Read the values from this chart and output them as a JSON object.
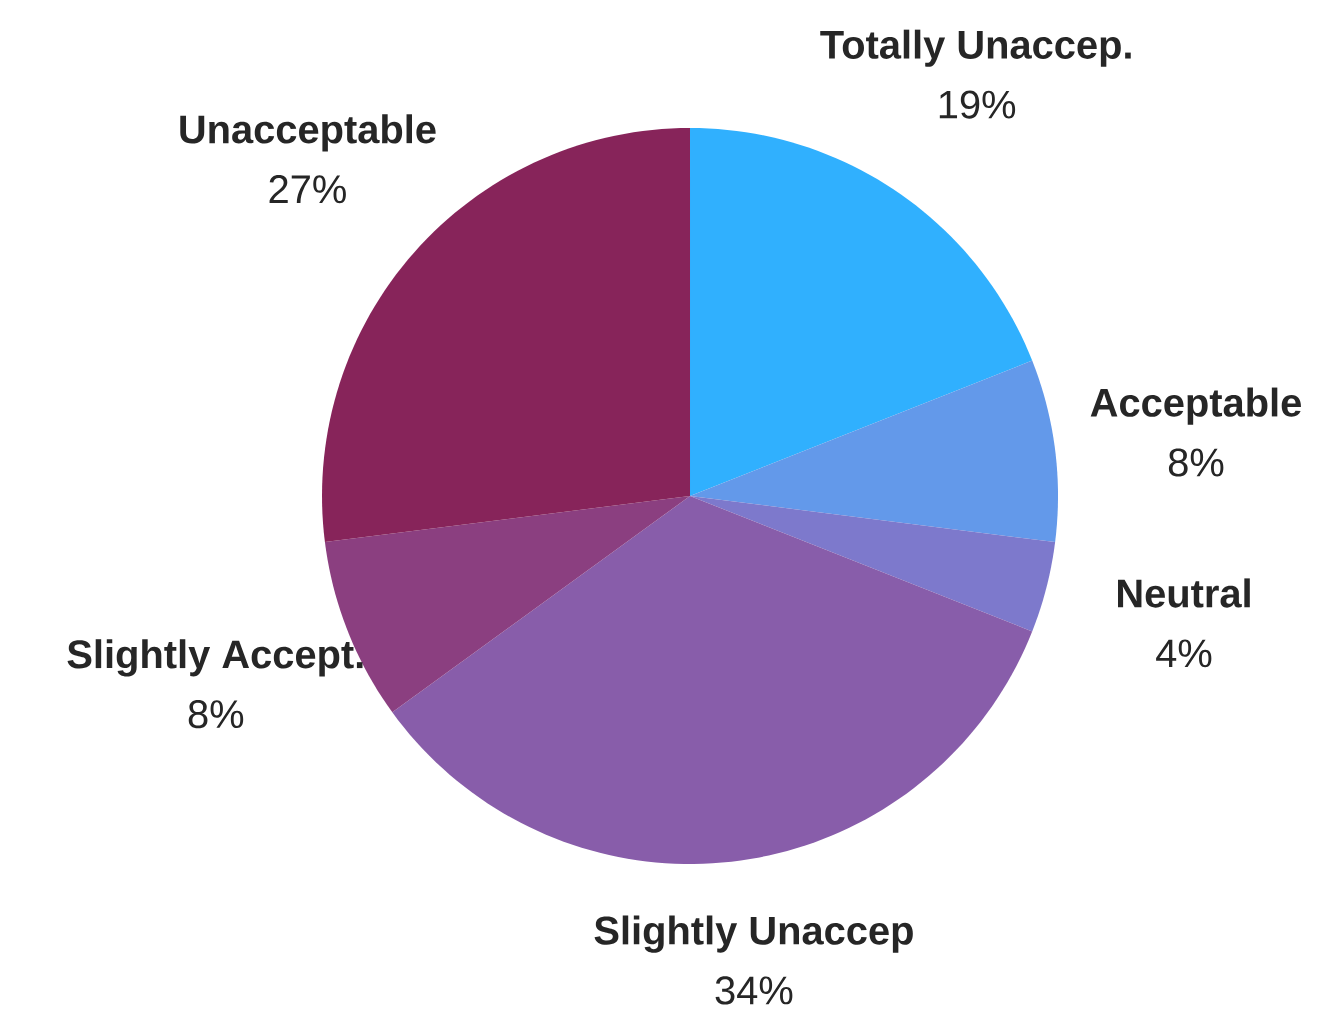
{
  "chart_data": {
    "type": "pie",
    "categories": [
      "Totally Unaccep.",
      "Acceptable",
      "Neutral",
      "Slightly Unaccep",
      "Slightly Accept.",
      "Unacceptable"
    ],
    "values": [
      19,
      8,
      4,
      34,
      8,
      27
    ],
    "value_labels": [
      "19%",
      "8%",
      "4%",
      "34%",
      "8%",
      "27%"
    ],
    "colors": [
      "#30b0fe",
      "#6399ea",
      "#7d79cc",
      "#885daa",
      "#8b3f80",
      "#87245a"
    ]
  }
}
